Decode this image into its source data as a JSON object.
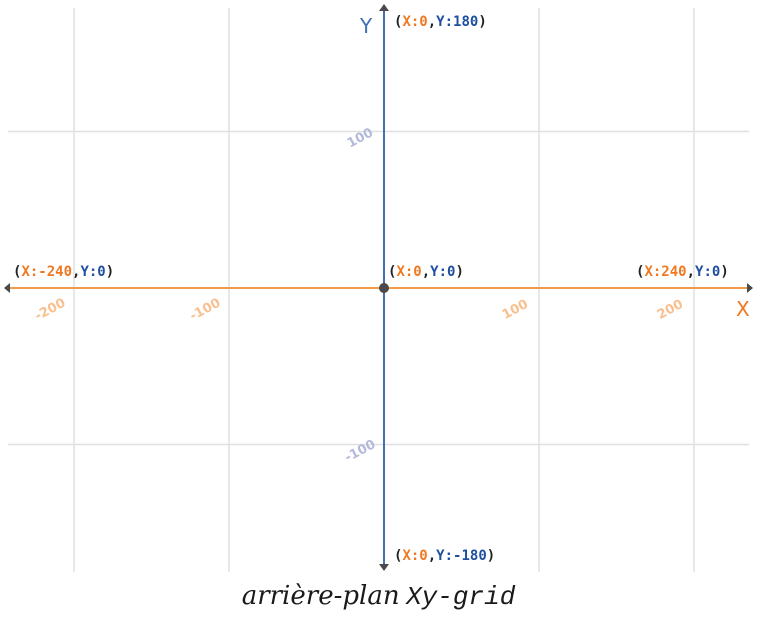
{
  "colors": {
    "x_axis": "#f09a4a",
    "x_text": "#f07820",
    "y_axis": "#3f6fb5",
    "y_text": "#1f4fa0",
    "x_tick": "#f7c08e",
    "y_tick": "#b3b9dc",
    "grid": "#e0e0e0",
    "origin": "#4a4a4a"
  },
  "axes": {
    "x_name": "X",
    "y_name": "Y",
    "x_range": [
      -240,
      240
    ],
    "y_range": [
      -180,
      180
    ],
    "gridlines_x": [
      -200,
      -100,
      100,
      200
    ],
    "gridlines_y": [
      -100,
      100
    ]
  },
  "x_ticks": [
    {
      "value": -200,
      "label": "-200"
    },
    {
      "value": -100,
      "label": "-100"
    },
    {
      "value": 100,
      "label": "100"
    },
    {
      "value": 200,
      "label": "200"
    }
  ],
  "y_ticks": [
    {
      "value": 100,
      "label": "100"
    },
    {
      "value": -100,
      "label": "-100"
    }
  ],
  "points": [
    {
      "name": "point-top",
      "x_prefix": "(X:0",
      "y_part": ",Y:180)"
    },
    {
      "name": "point-left",
      "x_prefix": "(X:-240",
      "y_part": ",Y:0)"
    },
    {
      "name": "point-origin",
      "x_prefix": "(X:0",
      "y_part": ",Y:0)"
    },
    {
      "name": "point-right",
      "x_prefix": "(X:240",
      "y_part": ",Y:0)"
    },
    {
      "name": "point-bottom",
      "x_prefix": "(X:0",
      "y_part": ",Y:-180)"
    }
  ],
  "caption": {
    "italic_part": "arrière-plan",
    "mono_part": "Xy-grid"
  }
}
